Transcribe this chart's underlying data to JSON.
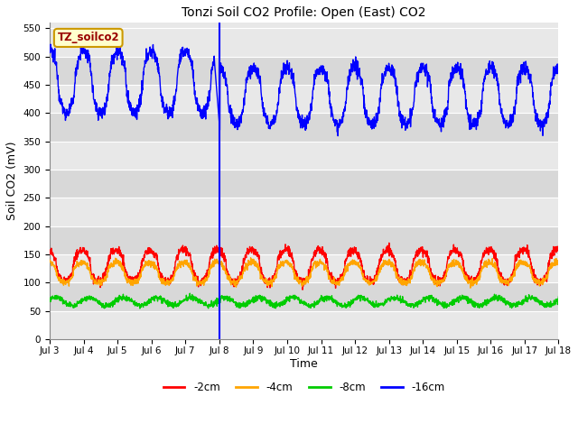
{
  "title": "Tonzi Soil CO2 Profile: Open (East) CO2",
  "ylabel": "Soil CO2 (mV)",
  "xlabel": "Time",
  "ylim": [
    0,
    560
  ],
  "yticks": [
    0,
    50,
    100,
    150,
    200,
    250,
    300,
    350,
    400,
    450,
    500,
    550
  ],
  "xtick_labels": [
    "Jul 3",
    "Jul 4",
    "Jul 5",
    "Jul 6",
    "Jul 7",
    "Jul 8",
    "Jul 9",
    "Jul 10",
    "Jul 11",
    "Jul 12",
    "Jul 13",
    "Jul 14",
    "Jul 15",
    "Jul 16",
    "Jul 17",
    "Jul 18"
  ],
  "vline_x": 5.0,
  "colors": {
    "neg2cm": "#FF0000",
    "neg4cm": "#FFA500",
    "neg8cm": "#00CC00",
    "neg16cm": "#0000FF"
  },
  "legend_labels": [
    "-2cm",
    "-4cm",
    "-8cm",
    "-16cm"
  ],
  "tag_label": "TZ_soilco2",
  "tag_text_color": "#990000",
  "tag_bg": "#FFFFCC",
  "tag_border": "#CC9900",
  "plot_bg_light": "#E8E8E8",
  "plot_bg_dark": "#D8D8D8",
  "fig_bg": "#FFFFFF",
  "grid_color": "#FFFFFF"
}
